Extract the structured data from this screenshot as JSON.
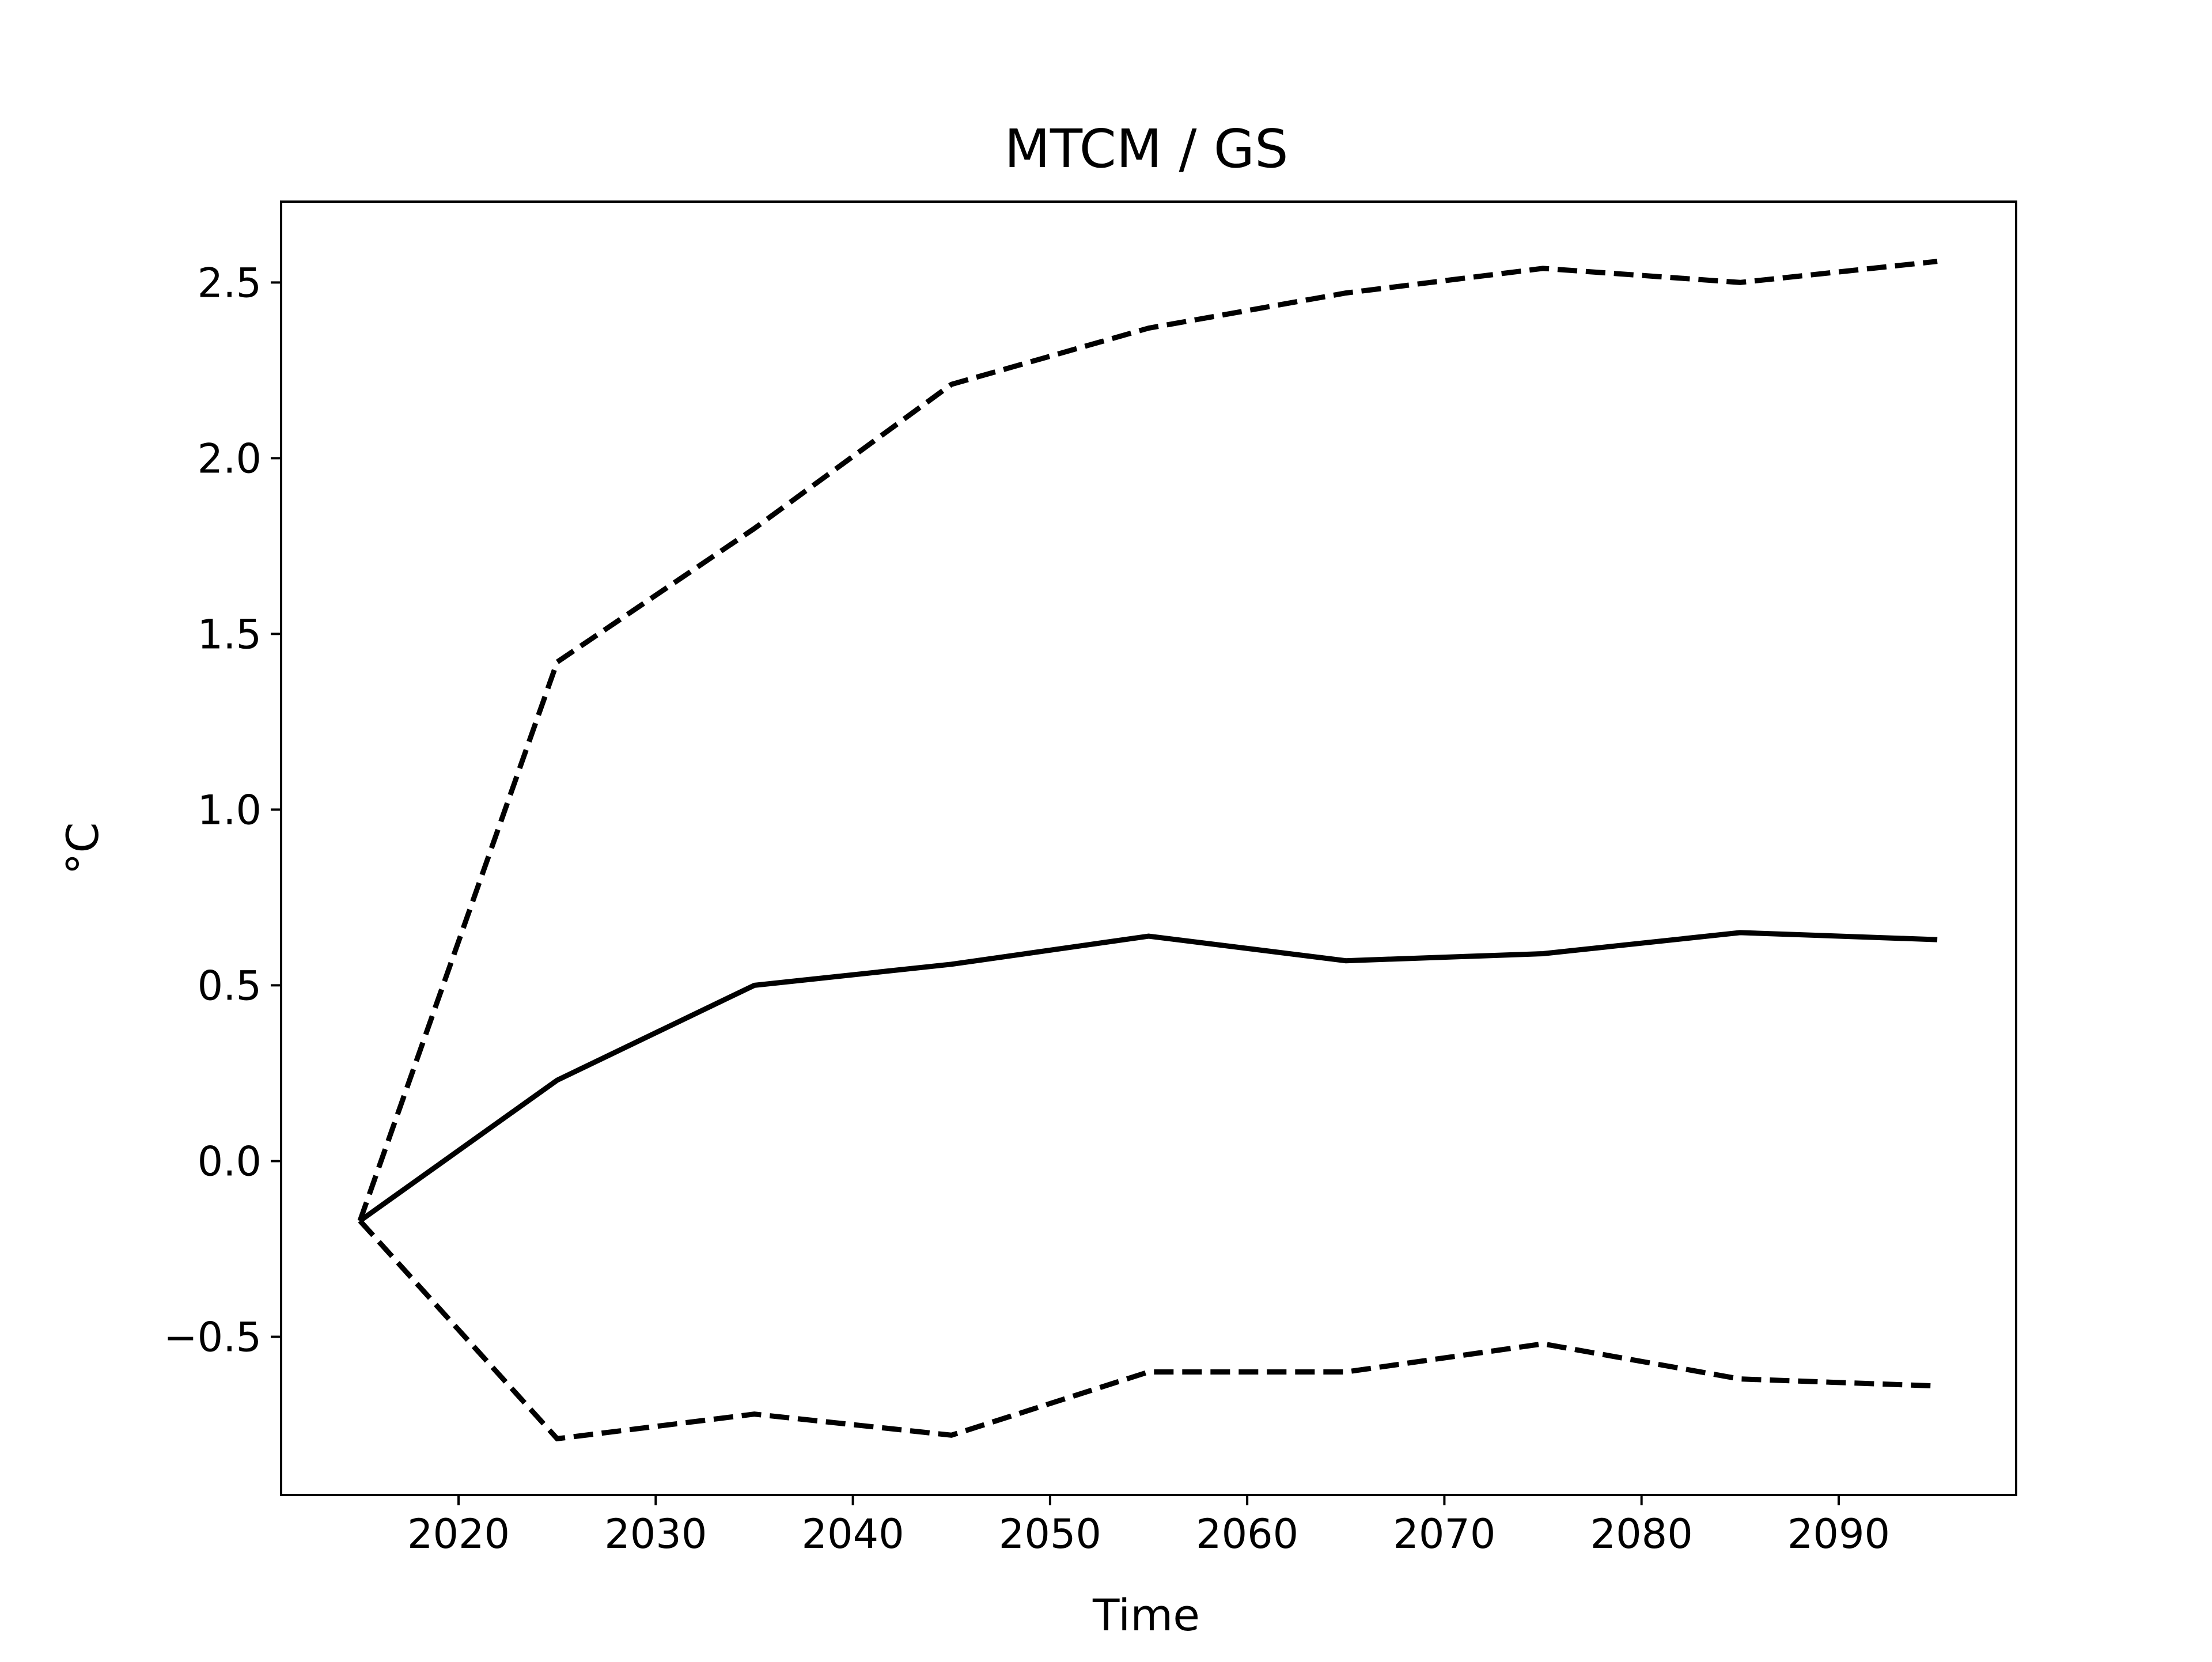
{
  "chart_data": {
    "type": "line",
    "title": "MTCM / GS",
    "xlabel": "Time",
    "ylabel": "°C",
    "xlim": [
      2011,
      2099
    ],
    "ylim": [
      -0.95,
      2.73
    ],
    "x_ticks": [
      2020,
      2030,
      2040,
      2050,
      2060,
      2070,
      2080,
      2090
    ],
    "y_ticks": [
      -0.5,
      0.0,
      0.5,
      1.0,
      1.5,
      2.0,
      2.5
    ],
    "y_tick_labels": [
      "−0.5",
      "0.0",
      "0.5",
      "1.0",
      "1.5",
      "2.0",
      "2.5"
    ],
    "grid": false,
    "legend": "none",
    "x": [
      2015,
      2025,
      2035,
      2045,
      2055,
      2065,
      2075,
      2085,
      2095
    ],
    "series": [
      {
        "style": "solid",
        "color": "#000000",
        "values": [
          -0.17,
          0.23,
          0.5,
          0.56,
          0.64,
          0.57,
          0.59,
          0.65,
          0.63
        ]
      },
      {
        "style": "dashed",
        "color": "#000000",
        "values": [
          -0.17,
          1.42,
          1.8,
          2.21,
          2.37,
          2.47,
          2.54,
          2.5,
          2.56
        ]
      },
      {
        "style": "dashed",
        "color": "#000000",
        "values": [
          -0.17,
          -0.79,
          -0.72,
          -0.78,
          -0.6,
          -0.6,
          -0.52,
          -0.62,
          -0.64
        ]
      }
    ]
  }
}
